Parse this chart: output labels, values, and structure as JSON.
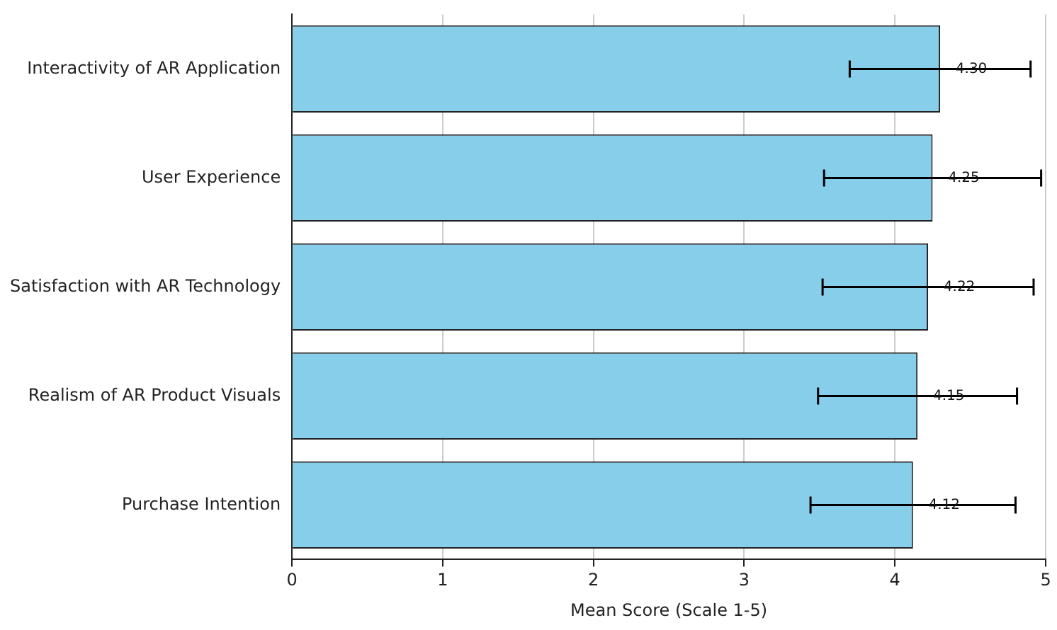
{
  "chart_data": {
    "type": "bar",
    "orientation": "horizontal",
    "xlabel": "Mean Score (Scale 1-5)",
    "categories": [
      "Interactivity of AR Application",
      "User Experience",
      "Satisfaction with AR Technology",
      "Realism of AR Product Visuals",
      "Purchase Intention"
    ],
    "values": [
      4.3,
      4.25,
      4.22,
      4.15,
      4.12
    ],
    "errors": [
      0.6,
      0.72,
      0.7,
      0.66,
      0.68
    ],
    "value_labels": [
      "4.30",
      "4.25",
      "4.22",
      "4.15",
      "4.12"
    ],
    "color": "#87ceeb",
    "xlim": [
      0,
      5
    ],
    "xticks": [
      0,
      1,
      2,
      3,
      4,
      5
    ],
    "grid": "x",
    "legend": false
  }
}
